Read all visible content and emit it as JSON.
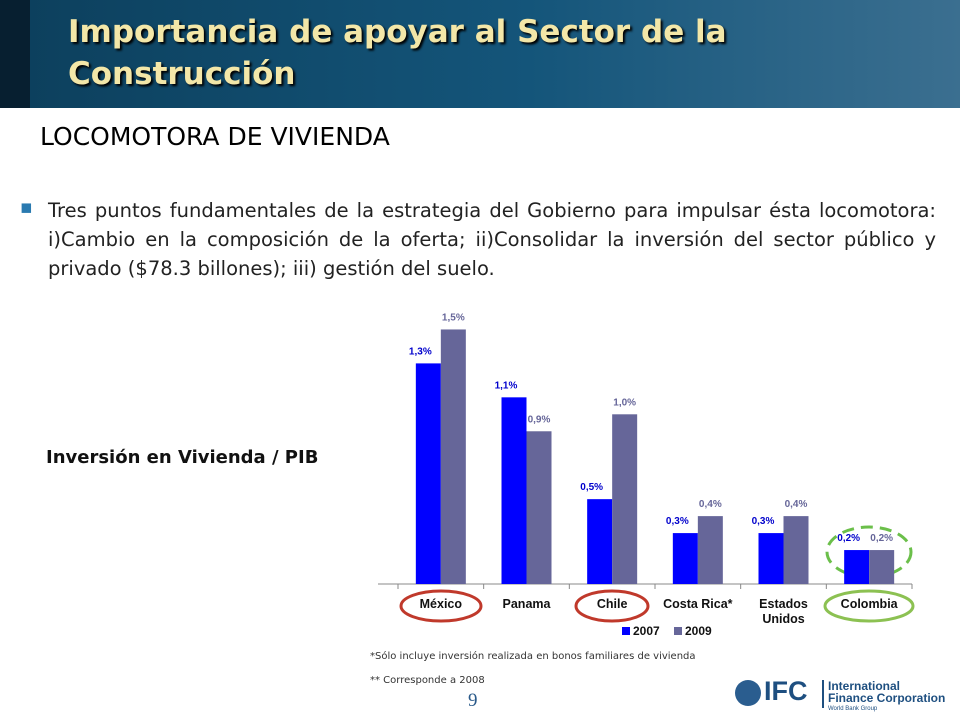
{
  "slide": {
    "title_line1": "Importancia de apoyar al Sector de la",
    "title_line2": "Construcción",
    "heading": "LOCOMOTORA DE VIVIENDA",
    "bullet": "Tres puntos fundamentales de la estrategia del Gobierno para impulsar ésta locomotora: i)Cambio en la composición de la oferta; ii)Consolidar la inversión del sector público y privado ($78.3 billones); iii) gestión del suelo.",
    "note1": "*Sólo incluye inversión realizada en bonos familiares de vivienda",
    "note2": "** Corresponde a 2008",
    "page_number": "9",
    "logo_mark": "IFC",
    "logo_name1": "International",
    "logo_name2": "Finance Corporation",
    "logo_sub": "World Bank Group"
  },
  "chart_data": {
    "type": "bar",
    "title": "Inversión en Vivienda / PIB",
    "categories": [
      "México",
      "Panama",
      "Chile",
      "Costa Rica*",
      "Estados Unidos",
      "Colombia"
    ],
    "series": [
      {
        "name": "2007",
        "color": "#0000ff",
        "values": [
          1.3,
          1.1,
          0.5,
          0.3,
          0.3,
          0.2
        ],
        "value_labels": [
          "1,3%",
          "1,1%",
          "0,5%",
          "0,3%",
          "0,3%",
          "0,2%"
        ]
      },
      {
        "name": "2009",
        "color": "#666699",
        "values": [
          1.5,
          0.9,
          1.0,
          0.4,
          0.4,
          0.2
        ],
        "value_labels": [
          "1,5%",
          "0,9%",
          "1,0%",
          "0,4%",
          "0,4%",
          "0,2%"
        ]
      }
    ]
  }
}
